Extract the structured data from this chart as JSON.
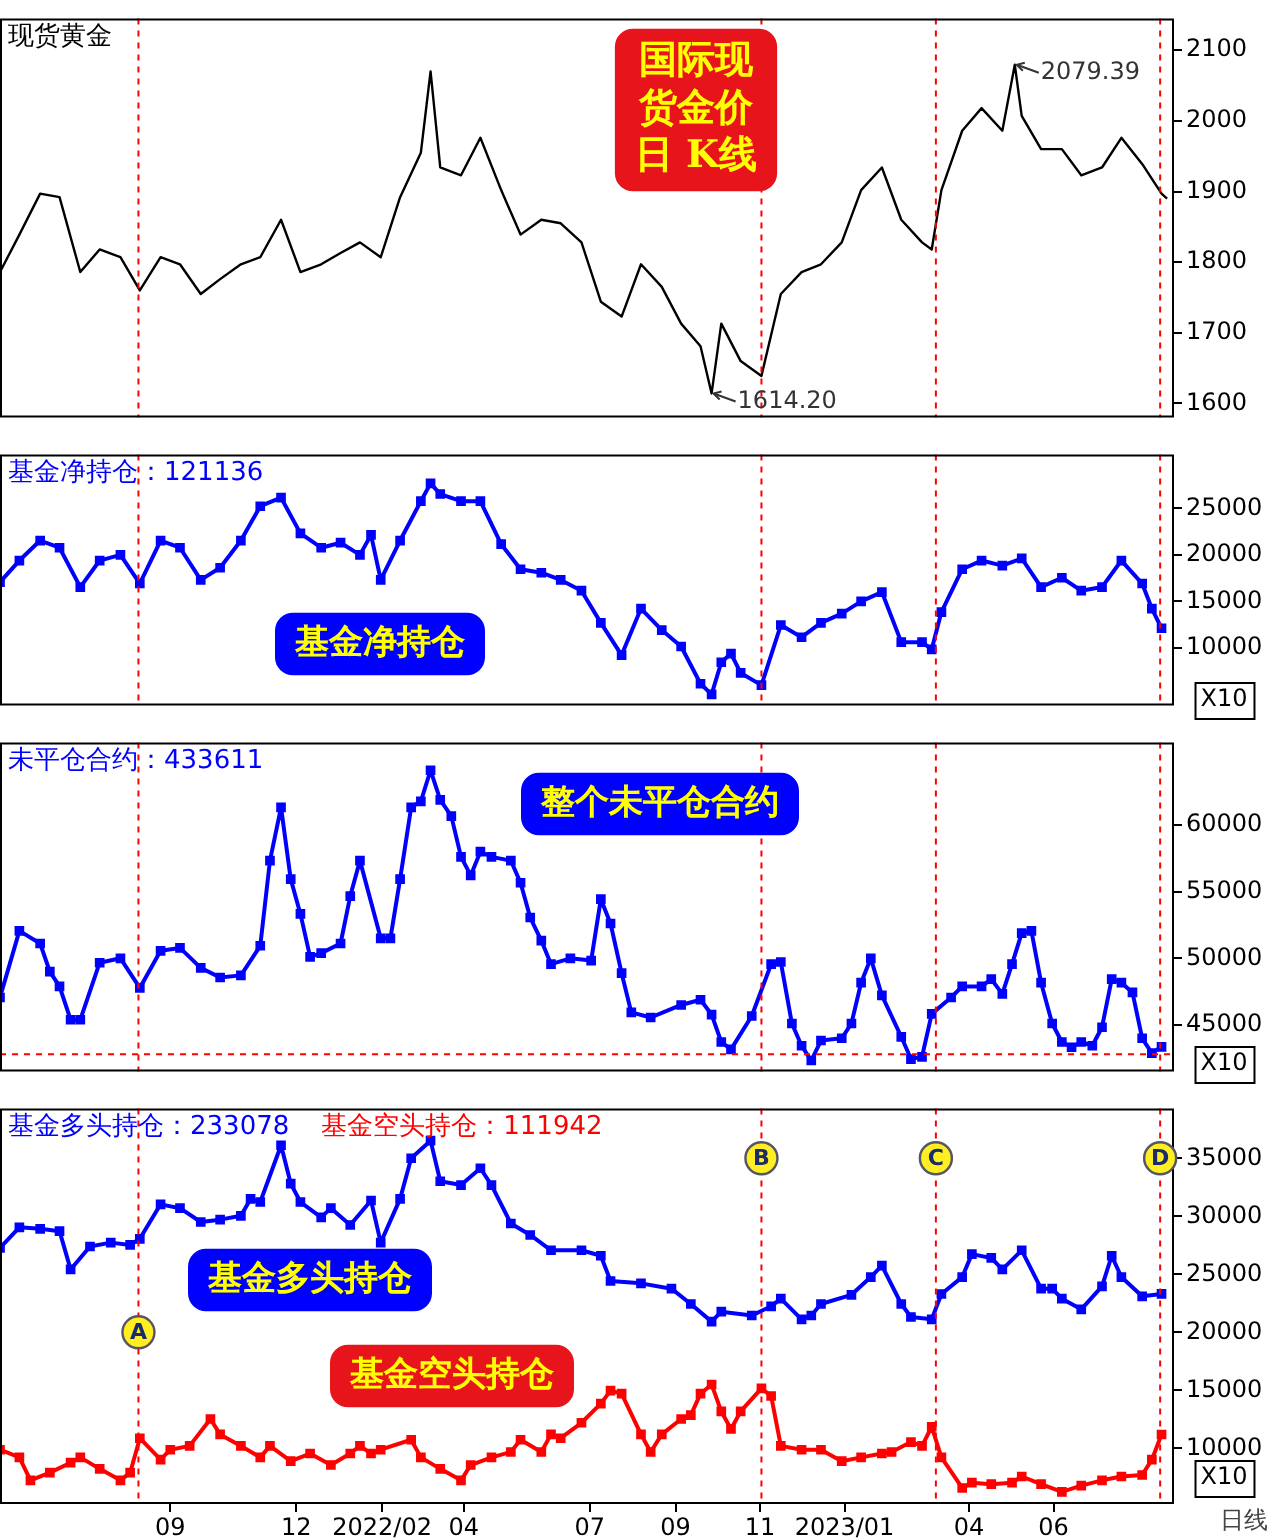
{
  "chart_data": [
    {
      "type": "line",
      "legend": "top left",
      "tick_labels": "y",
      "xlim": [
        "2021-05-01",
        "2023-08-27"
      ],
      "ylim": [
        1580,
        2145
      ],
      "yticks": [
        1600,
        1700,
        1800,
        1900,
        2000,
        2100
      ],
      "series": [
        {
          "name": "现货黄金",
          "color": "#000000",
          "x": [
            "2021-05-01",
            "2021-05-15",
            "2021-05-30",
            "2021-06-13",
            "2021-06-28",
            "2021-07-12",
            "2021-07-27",
            "2021-08-10",
            "2021-08-25",
            "2021-09-08",
            "2021-09-23",
            "2021-10-07",
            "2021-10-22",
            "2021-11-05",
            "2021-11-20",
            "2021-12-04",
            "2021-12-19",
            "2022-01-02",
            "2022-01-16",
            "2022-01-31",
            "2022-02-14",
            "2022-03-01",
            "2022-03-08",
            "2022-03-15",
            "2022-03-30",
            "2022-04-13",
            "2022-04-28",
            "2022-05-12",
            "2022-05-27",
            "2022-06-10",
            "2022-06-25",
            "2022-07-09",
            "2022-07-24",
            "2022-08-07",
            "2022-08-22",
            "2022-09-05",
            "2022-09-19",
            "2022-09-27",
            "2022-10-04",
            "2022-10-18",
            "2022-11-02",
            "2022-11-16",
            "2022-12-01",
            "2022-12-15",
            "2022-12-30",
            "2023-01-13",
            "2023-01-28",
            "2023-02-11",
            "2023-02-26",
            "2023-03-05",
            "2023-03-12",
            "2023-03-27",
            "2023-04-10",
            "2023-04-25",
            "2023-05-04",
            "2023-05-09",
            "2023-05-23",
            "2023-06-07",
            "2023-06-21",
            "2023-07-06",
            "2023-07-20",
            "2023-08-04",
            "2023-08-18",
            "2023-08-22"
          ],
          "values": [
            1786,
            1839,
            1897,
            1892,
            1786,
            1818,
            1807,
            1760,
            1807,
            1797,
            1755,
            1776,
            1797,
            1807,
            1860,
            1786,
            1797,
            1813,
            1828,
            1807,
            1892,
            1955,
            2070,
            1934,
            1923,
            1976,
            1902,
            1839,
            1860,
            1855,
            1828,
            1744,
            1723,
            1797,
            1765,
            1713,
            1681,
            1614.2,
            1713,
            1660,
            1639,
            1755,
            1786,
            1797,
            1828,
            1902,
            1934,
            1860,
            1828,
            1818,
            1902,
            1986,
            2018,
            1986,
            2079.39,
            2007,
            1960,
            1960,
            1923,
            1934,
            1976,
            1939,
            1897,
            1890
          ]
        }
      ],
      "ref_lines": [
        {
          "axis": "x",
          "value": "2021-08-09",
          "color": "#ff0000",
          "line_style": "dashed"
        },
        {
          "axis": "x",
          "value": "2022-11-02",
          "color": "#ff0000",
          "line_style": "dashed"
        },
        {
          "axis": "x",
          "value": "2023-03-08",
          "color": "#ff0000",
          "line_style": "dashed"
        },
        {
          "axis": "x",
          "value": "2023-08-17",
          "color": "#ff0000",
          "line_style": "dashed"
        }
      ],
      "annotations": [
        "国际现货金价日 K线",
        {
          "text": "2079.39",
          "x": "2023-05-04",
          "y": 2079.39
        },
        {
          "text": "1614.20",
          "x": "2022-09-27",
          "y": 1614.2
        }
      ]
    },
    {
      "type": "line",
      "legend": "top left",
      "tick_labels": "y",
      "marker": "square",
      "xlim": [
        "2021-05-01",
        "2023-08-27"
      ],
      "ylim": [
        3800,
        30800
      ],
      "yticks": [
        10000,
        15000,
        20000,
        25000
      ],
      "series": [
        {
          "name": "基金净持仓：121136",
          "color": "#0000ff",
          "x": [
            "2021-05-01",
            "2021-05-15",
            "2021-05-30",
            "2021-06-13",
            "2021-06-28",
            "2021-07-12",
            "2021-07-27",
            "2021-08-10",
            "2021-08-25",
            "2021-09-08",
            "2021-09-23",
            "2021-10-07",
            "2021-10-22",
            "2021-11-05",
            "2021-11-20",
            "2021-12-04",
            "2021-12-19",
            "2022-01-02",
            "2022-01-16",
            "2022-01-24",
            "2022-01-31",
            "2022-02-14",
            "2022-03-01",
            "2022-03-08",
            "2022-03-15",
            "2022-03-30",
            "2022-04-13",
            "2022-04-28",
            "2022-05-12",
            "2022-05-27",
            "2022-06-10",
            "2022-06-25",
            "2022-07-09",
            "2022-07-24",
            "2022-08-07",
            "2022-08-22",
            "2022-09-05",
            "2022-09-19",
            "2022-09-27",
            "2022-10-04",
            "2022-10-11",
            "2022-10-18",
            "2022-11-02",
            "2022-11-16",
            "2022-12-01",
            "2022-12-15",
            "2022-12-30",
            "2023-01-13",
            "2023-01-28",
            "2023-02-11",
            "2023-02-26",
            "2023-03-05",
            "2023-03-12",
            "2023-03-27",
            "2023-04-10",
            "2023-04-25",
            "2023-05-09",
            "2023-05-23",
            "2023-06-07",
            "2023-06-21",
            "2023-07-06",
            "2023-07-20",
            "2023-08-04",
            "2023-08-11",
            "2023-08-18"
          ],
          "values": [
            17080,
            19390,
            21540,
            20770,
            16540,
            19390,
            20000,
            16920,
            21540,
            20770,
            17310,
            18620,
            21540,
            25230,
            26150,
            22310,
            20770,
            21310,
            20000,
            22150,
            17310,
            21540,
            25770,
            27690,
            26540,
            25770,
            25770,
            21150,
            18460,
            18080,
            17310,
            16150,
            12690,
            9230,
            14230,
            11920,
            10150,
            6150,
            5000,
            8460,
            9390,
            7310,
            6000,
            12460,
            11150,
            12690,
            13690,
            15000,
            16000,
            10620,
            10620,
            9850,
            13850,
            18460,
            19390,
            18850,
            19620,
            16540,
            17540,
            16150,
            16540,
            19390,
            16920,
            14230,
            12114
          ]
        }
      ],
      "ref_lines": [
        {
          "axis": "x",
          "value": "2021-08-09",
          "color": "#ff0000",
          "line_style": "dashed"
        },
        {
          "axis": "x",
          "value": "2022-11-02",
          "color": "#ff0000",
          "line_style": "dashed"
        },
        {
          "axis": "x",
          "value": "2023-03-08",
          "color": "#ff0000",
          "line_style": "dashed"
        },
        {
          "axis": "x",
          "value": "2023-08-17",
          "color": "#ff0000",
          "line_style": "dashed"
        }
      ],
      "annotations": [
        "基金净持仓",
        "X10"
      ]
    },
    {
      "type": "line",
      "legend": "top left",
      "tick_labels": "y",
      "marker": "square",
      "xlim": [
        "2021-05-01",
        "2023-08-27"
      ],
      "ylim": [
        41500,
        66200
      ],
      "yticks": [
        45000,
        50000,
        55000,
        60000
      ],
      "series": [
        {
          "name": "未平仓合约：433611",
          "color": "#0000ff",
          "x": [
            "2021-05-01",
            "2021-05-15",
            "2021-05-30",
            "2021-06-06",
            "2021-06-13",
            "2021-06-21",
            "2021-06-28",
            "2021-07-12",
            "2021-07-27",
            "2021-08-10",
            "2021-08-25",
            "2021-09-08",
            "2021-09-23",
            "2021-10-07",
            "2021-10-22",
            "2021-11-05",
            "2021-11-12",
            "2021-11-20",
            "2021-11-27",
            "2021-12-04",
            "2021-12-11",
            "2021-12-19",
            "2022-01-02",
            "2022-01-09",
            "2022-01-16",
            "2022-01-31",
            "2022-02-07",
            "2022-02-14",
            "2022-02-22",
            "2022-03-01",
            "2022-03-08",
            "2022-03-15",
            "2022-03-23",
            "2022-03-30",
            "2022-04-06",
            "2022-04-13",
            "2022-04-21",
            "2022-05-05",
            "2022-05-12",
            "2022-05-19",
            "2022-05-27",
            "2022-06-03",
            "2022-06-17",
            "2022-07-02",
            "2022-07-09",
            "2022-07-16",
            "2022-07-24",
            "2022-07-31",
            "2022-08-14",
            "2022-09-05",
            "2022-09-19",
            "2022-09-27",
            "2022-10-04",
            "2022-10-11",
            "2022-10-26",
            "2022-11-09",
            "2022-11-16",
            "2022-11-24",
            "2022-12-01",
            "2022-12-08",
            "2022-12-15",
            "2022-12-30",
            "2023-01-06",
            "2023-01-13",
            "2023-01-20",
            "2023-01-28",
            "2023-02-11",
            "2023-02-18",
            "2023-02-26",
            "2023-03-05",
            "2023-03-19",
            "2023-03-27",
            "2023-04-10",
            "2023-04-17",
            "2023-04-25",
            "2023-05-02",
            "2023-05-09",
            "2023-05-16",
            "2023-05-23",
            "2023-05-31",
            "2023-06-07",
            "2023-06-14",
            "2023-06-21",
            "2023-06-29",
            "2023-07-06",
            "2023-07-13",
            "2023-07-20",
            "2023-07-28",
            "2023-08-04",
            "2023-08-11",
            "2023-08-18"
          ],
          "values": [
            47060,
            52060,
            51110,
            49000,
            47890,
            45390,
            45390,
            49670,
            50000,
            47780,
            50560,
            50780,
            49280,
            48560,
            48720,
            50940,
            57330,
            61330,
            55940,
            53330,
            50110,
            50390,
            51110,
            54670,
            57330,
            51500,
            51500,
            55940,
            61330,
            61780,
            64110,
            61890,
            60670,
            57610,
            56220,
            58000,
            57610,
            57330,
            55670,
            53060,
            51330,
            49560,
            50000,
            49830,
            54440,
            52610,
            48890,
            45940,
            45560,
            46500,
            46890,
            45780,
            43720,
            43170,
            45670,
            49560,
            49720,
            45110,
            43440,
            42330,
            43830,
            44000,
            45110,
            48170,
            50000,
            47220,
            44110,
            42440,
            42610,
            45830,
            47060,
            47890,
            47890,
            48440,
            47330,
            49560,
            51890,
            52060,
            48170,
            45110,
            43720,
            43330,
            43720,
            43440,
            44830,
            48440,
            48170,
            47440,
            44000,
            42890,
            43361
          ]
        }
      ],
      "ref_lines": [
        {
          "axis": "x",
          "value": "2021-08-09",
          "color": "#ff0000",
          "line_style": "dashed"
        },
        {
          "axis": "x",
          "value": "2022-11-02",
          "color": "#ff0000",
          "line_style": "dashed"
        },
        {
          "axis": "x",
          "value": "2023-03-08",
          "color": "#ff0000",
          "line_style": "dashed"
        },
        {
          "axis": "x",
          "value": "2023-08-17",
          "color": "#ff0000",
          "line_style": "dashed"
        },
        {
          "axis": "y",
          "value": 42800,
          "color": "#ff0000",
          "line_style": "dashed"
        }
      ],
      "annotations": [
        "整个未平仓合约",
        "X10"
      ]
    },
    {
      "type": "line",
      "legend": "top left",
      "marker": "square",
      "xlim": [
        "2021-05-01",
        "2023-08-27"
      ],
      "xticks": [
        {
          "value": "2021-09",
          "label": "09"
        },
        {
          "value": "2021-12",
          "label": "12"
        },
        {
          "value": "2022-02",
          "label": "2022/02"
        },
        {
          "value": "2022-04",
          "label": "04"
        },
        {
          "value": "2022-07",
          "label": "07"
        },
        {
          "value": "2022-09",
          "label": "09"
        },
        {
          "value": "2022-11",
          "label": "11"
        },
        {
          "value": "2023-01",
          "label": "2023/01"
        },
        {
          "value": "2023-04",
          "label": "04"
        },
        {
          "value": "2023-06",
          "label": "06"
        }
      ],
      "ylim": [
        5200,
        39300
      ],
      "yticks": [
        10000,
        15000,
        20000,
        25000,
        30000,
        35000
      ],
      "series": [
        {
          "name": "基金多头持仓：233078",
          "color": "#0000ff",
          "x": [
            "2021-05-01",
            "2021-05-15",
            "2021-05-30",
            "2021-06-13",
            "2021-06-21",
            "2021-07-05",
            "2021-07-20",
            "2021-08-03",
            "2021-08-10",
            "2021-08-25",
            "2021-09-08",
            "2021-09-23",
            "2021-10-07",
            "2021-10-22",
            "2021-10-29",
            "2021-11-05",
            "2021-11-20",
            "2021-11-27",
            "2021-12-04",
            "2021-12-19",
            "2021-12-26",
            "2022-01-09",
            "2022-01-24",
            "2022-01-31",
            "2022-02-14",
            "2022-02-22",
            "2022-03-08",
            "2022-03-15",
            "2022-03-30",
            "2022-04-13",
            "2022-04-21",
            "2022-05-05",
            "2022-05-19",
            "2022-06-03",
            "2022-06-25",
            "2022-07-09",
            "2022-07-16",
            "2022-08-07",
            "2022-08-29",
            "2022-09-12",
            "2022-09-27",
            "2022-10-04",
            "2022-10-26",
            "2022-11-09",
            "2022-11-16",
            "2022-12-01",
            "2022-12-08",
            "2022-12-15",
            "2023-01-06",
            "2023-01-20",
            "2023-01-28",
            "2023-02-11",
            "2023-02-18",
            "2023-03-05",
            "2023-03-12",
            "2023-03-27",
            "2023-04-03",
            "2023-04-17",
            "2023-04-25",
            "2023-05-09",
            "2023-05-23",
            "2023-05-31",
            "2023-06-07",
            "2023-06-21",
            "2023-07-06",
            "2023-07-13",
            "2023-07-20",
            "2023-08-04",
            "2023-08-18"
          ],
          "values": [
            27270,
            29050,
            28920,
            28720,
            25420,
            27400,
            27730,
            27530,
            28060,
            31030,
            30700,
            29510,
            29710,
            30040,
            31500,
            31230,
            36120,
            32820,
            31230,
            29910,
            30700,
            29250,
            31360,
            27730,
            31500,
            35000,
            36520,
            33020,
            32690,
            34140,
            32690,
            29380,
            28390,
            27070,
            27070,
            26600,
            24420,
            24220,
            23760,
            22440,
            20920,
            21780,
            21450,
            22240,
            22900,
            21120,
            21450,
            22440,
            23230,
            24760,
            25750,
            22440,
            21320,
            21120,
            23300,
            24760,
            26740,
            26410,
            25420,
            27070,
            23760,
            23760,
            22900,
            21980,
            23960,
            26600,
            24760,
            23100,
            23308
          ]
        },
        {
          "name": "基金空头持仓：111942",
          "color": "#ff0000",
          "x": [
            "2021-05-01",
            "2021-05-15",
            "2021-05-23",
            "2021-06-06",
            "2021-06-21",
            "2021-06-28",
            "2021-07-12",
            "2021-07-27",
            "2021-08-03",
            "2021-08-10",
            "2021-08-25",
            "2021-09-01",
            "2021-09-15",
            "2021-09-30",
            "2021-10-07",
            "2021-10-22",
            "2021-11-05",
            "2021-11-12",
            "2021-11-27",
            "2021-12-11",
            "2021-12-26",
            "2022-01-09",
            "2022-01-16",
            "2022-01-24",
            "2022-01-31",
            "2022-02-22",
            "2022-03-01",
            "2022-03-15",
            "2022-03-30",
            "2022-04-06",
            "2022-04-21",
            "2022-05-05",
            "2022-05-12",
            "2022-05-27",
            "2022-06-03",
            "2022-06-10",
            "2022-06-25",
            "2022-07-09",
            "2022-07-16",
            "2022-07-24",
            "2022-08-07",
            "2022-08-14",
            "2022-08-22",
            "2022-09-05",
            "2022-09-12",
            "2022-09-19",
            "2022-09-27",
            "2022-10-04",
            "2022-10-11",
            "2022-10-18",
            "2022-11-02",
            "2022-11-09",
            "2022-11-16",
            "2022-12-01",
            "2022-12-15",
            "2022-12-30",
            "2023-01-13",
            "2023-01-28",
            "2023-02-04",
            "2023-02-18",
            "2023-02-26",
            "2023-03-05",
            "2023-03-12",
            "2023-03-27",
            "2023-04-03",
            "2023-04-17",
            "2023-05-02",
            "2023-05-09",
            "2023-05-23",
            "2023-06-07",
            "2023-06-21",
            "2023-07-06",
            "2023-07-20",
            "2023-08-04",
            "2023-08-11",
            "2023-08-18"
          ],
          "values": [
            9880,
            9220,
            7240,
            7900,
            8760,
            9220,
            8230,
            7240,
            7900,
            10870,
            9020,
            9880,
            10210,
            12530,
            11200,
            10210,
            9220,
            10210,
            8890,
            9550,
            8560,
            9550,
            10210,
            9550,
            9880,
            10740,
            9220,
            8230,
            7240,
            8560,
            9220,
            9680,
            10740,
            9680,
            11200,
            10870,
            12200,
            13850,
            14970,
            14710,
            11200,
            9680,
            11200,
            12530,
            12860,
            14710,
            15500,
            13180,
            11670,
            13180,
            15170,
            14510,
            10210,
            9880,
            9880,
            8890,
            9220,
            9550,
            9680,
            10540,
            10210,
            11860,
            9220,
            6580,
            7040,
            6910,
            7040,
            7570,
            6910,
            6250,
            6780,
            7240,
            7570,
            7700,
            9020,
            11194
          ]
        }
      ],
      "ref_lines": [
        {
          "axis": "x",
          "value": "2021-08-09",
          "color": "#ff0000",
          "line_style": "dashed"
        },
        {
          "axis": "x",
          "value": "2022-11-02",
          "color": "#ff0000",
          "line_style": "dashed"
        },
        {
          "axis": "x",
          "value": "2023-03-08",
          "color": "#ff0000",
          "line_style": "dashed"
        },
        {
          "axis": "x",
          "value": "2023-08-17",
          "color": "#ff0000",
          "line_style": "dashed"
        }
      ],
      "annotations": [
        "基金多头持仓",
        "基金空头持仓",
        "X10",
        "日线",
        {
          "text": "A",
          "x": "2021-08-09",
          "y": 20000
        },
        {
          "text": "B",
          "x": "2022-11-02",
          "y": 35000
        },
        {
          "text": "C",
          "x": "2023-03-08",
          "y": 35000
        },
        {
          "text": "D",
          "x": "2023-08-17",
          "y": 35000
        }
      ]
    }
  ]
}
